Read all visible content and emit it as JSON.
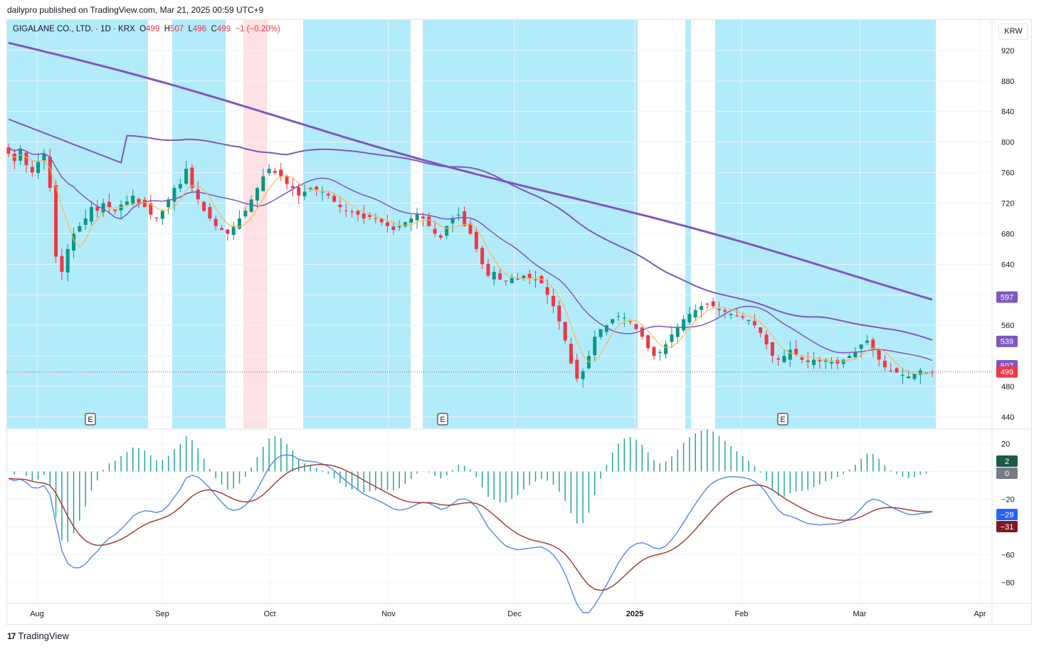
{
  "header": {
    "published": "dailypro published on TradingView.com, Mar 21, 2025 00:59 UTC+9"
  },
  "legend": {
    "symbol": "GIGALANE CO., LTD. · 1D · KRX",
    "o_label": "O",
    "o": "499",
    "h_label": "H",
    "h": "507",
    "l_label": "L",
    "l": "496",
    "c_label": "C",
    "c": "499",
    "change": "−1 (−0.20%)"
  },
  "currency": "KRW",
  "footer": {
    "brand": "TradingView",
    "mark": "17"
  },
  "colors": {
    "up": "#089981",
    "down": "#f23645",
    "bg_blue": "#b2ebfa",
    "bg_pink": "#fde2e5",
    "ma_purple": "#7e57c2",
    "ma_mid": "#9575cd",
    "ma_orange": "#ffb74d",
    "macd": "#5b8def",
    "signal": "#a0423a",
    "hist_up": "#26a69a",
    "hist_down": "#26a69a"
  },
  "chart_data": [
    {
      "type": "candlestick",
      "x_ticks": [
        "Aug",
        "Sep",
        "Oct",
        "Nov",
        "Dec",
        "2025",
        "Feb",
        "Mar",
        "Apr"
      ],
      "y_ticks": [
        440,
        480,
        520,
        560,
        600,
        640,
        680,
        720,
        760,
        800,
        840,
        880,
        920
      ],
      "y_tick_labels": [
        "440",
        "480",
        "",
        "560",
        "",
        "640",
        "680",
        "720",
        "760",
        "800",
        "840",
        "880",
        "920"
      ],
      "ylim": [
        425,
        960
      ],
      "price_labels": [
        {
          "value": 597,
          "text": "597",
          "color": "#7e57c2"
        },
        {
          "value": 539,
          "text": "539",
          "color": "#7e57c2"
        },
        {
          "value": 507,
          "text": "507",
          "color": "#7e57c2"
        },
        {
          "value": 499,
          "text": "499",
          "color": "#f23645"
        }
      ],
      "last_price": 499,
      "earnings_markers": [
        "E",
        "E",
        "E"
      ],
      "closes": [
        785,
        775,
        790,
        770,
        760,
        775,
        785,
        740,
        650,
        630,
        660,
        680,
        690,
        700,
        715,
        710,
        720,
        715,
        710,
        718,
        722,
        730,
        720,
        715,
        705,
        700,
        710,
        725,
        740,
        745,
        765,
        740,
        725,
        710,
        700,
        690,
        685,
        680,
        690,
        700,
        710,
        725,
        740,
        755,
        765,
        760,
        755,
        745,
        740,
        730,
        735,
        740,
        738,
        735,
        730,
        722,
        715,
        710,
        708,
        705,
        700,
        702,
        700,
        695,
        690,
        685,
        690,
        695,
        700,
        705,
        700,
        690,
        680,
        675,
        690,
        700,
        705,
        690,
        680,
        660,
        640,
        625,
        630,
        620,
        618,
        622,
        620,
        625,
        622,
        620,
        615,
        600,
        585,
        565,
        540,
        510,
        490,
        500,
        520,
        545,
        555,
        560,
        568,
        572,
        570,
        565,
        555,
        545,
        530,
        520,
        525,
        535,
        548,
        558,
        568,
        575,
        580,
        585,
        588,
        585,
        580,
        578,
        575,
        572,
        570,
        567,
        560,
        550,
        535,
        520,
        515,
        520,
        528,
        522,
        515,
        512,
        515,
        513,
        515,
        512,
        510,
        515,
        520,
        525,
        535,
        540,
        530,
        515,
        505,
        500,
        498,
        495,
        493,
        497,
        501,
        498,
        499
      ],
      "ma_fast": "close-following short average",
      "series": [
        {
          "name": "MA 1",
          "color": "#7e57c2"
        },
        {
          "name": "MA 2",
          "color": "#7e57c2"
        },
        {
          "name": "MA 3",
          "color": "#7e57c2"
        },
        {
          "name": "MA 4",
          "color": "#ffb74d"
        }
      ]
    },
    {
      "type": "macd",
      "y_ticks": [
        20,
        0,
        -20,
        -40,
        -60,
        -80
      ],
      "y_tick_labels": [
        "20",
        "",
        "−20",
        "",
        "−60",
        "−80"
      ],
      "ylim": [
        -95,
        30
      ],
      "value_labels": [
        {
          "value": 2,
          "text": "2",
          "color": "#1e5a4a"
        },
        {
          "value": 0,
          "text": "0",
          "color": "#787b86"
        },
        {
          "value": -29,
          "text": "−29",
          "color": "#2962ff"
        },
        {
          "value": -31,
          "text": "−31",
          "color": "#801922"
        }
      ],
      "series": [
        {
          "name": "MACD",
          "color": "#5b8def"
        },
        {
          "name": "Signal",
          "color": "#a0423a"
        },
        {
          "name": "Histogram",
          "color": "#26a69a"
        }
      ]
    }
  ]
}
